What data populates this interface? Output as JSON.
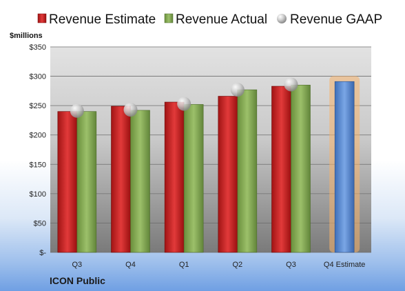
{
  "chart_data": {
    "type": "bar",
    "title": "",
    "company": "ICON Public",
    "unit_label": "$millions",
    "categories": [
      "Q3",
      "Q4",
      "Q1",
      "Q2",
      "Q3",
      "Q4 Estimate"
    ],
    "series": [
      {
        "name": "Revenue Estimate",
        "type": "bar",
        "values": [
          240,
          249,
          256,
          266,
          283,
          null
        ],
        "color": "#d42a2a"
      },
      {
        "name": "Revenue Actual",
        "type": "bar",
        "values": [
          240,
          242,
          252,
          277,
          285,
          null
        ],
        "color": "#8cb25a"
      },
      {
        "name": "Revenue GAAP",
        "type": "marker",
        "values": [
          241,
          243,
          253,
          277,
          286,
          null
        ],
        "color": "#c8c8c8"
      }
    ],
    "forecast": {
      "category": "Q4 Estimate",
      "value": 291,
      "color": "#5b8fd6",
      "highlight": "#f6b26b"
    },
    "y_ticks": [
      "$-",
      "$50",
      "$100",
      "$150",
      "$200",
      "$250",
      "$300",
      "$350"
    ],
    "ylim": [
      0,
      350
    ],
    "grid": true,
    "legend_position": "top"
  }
}
